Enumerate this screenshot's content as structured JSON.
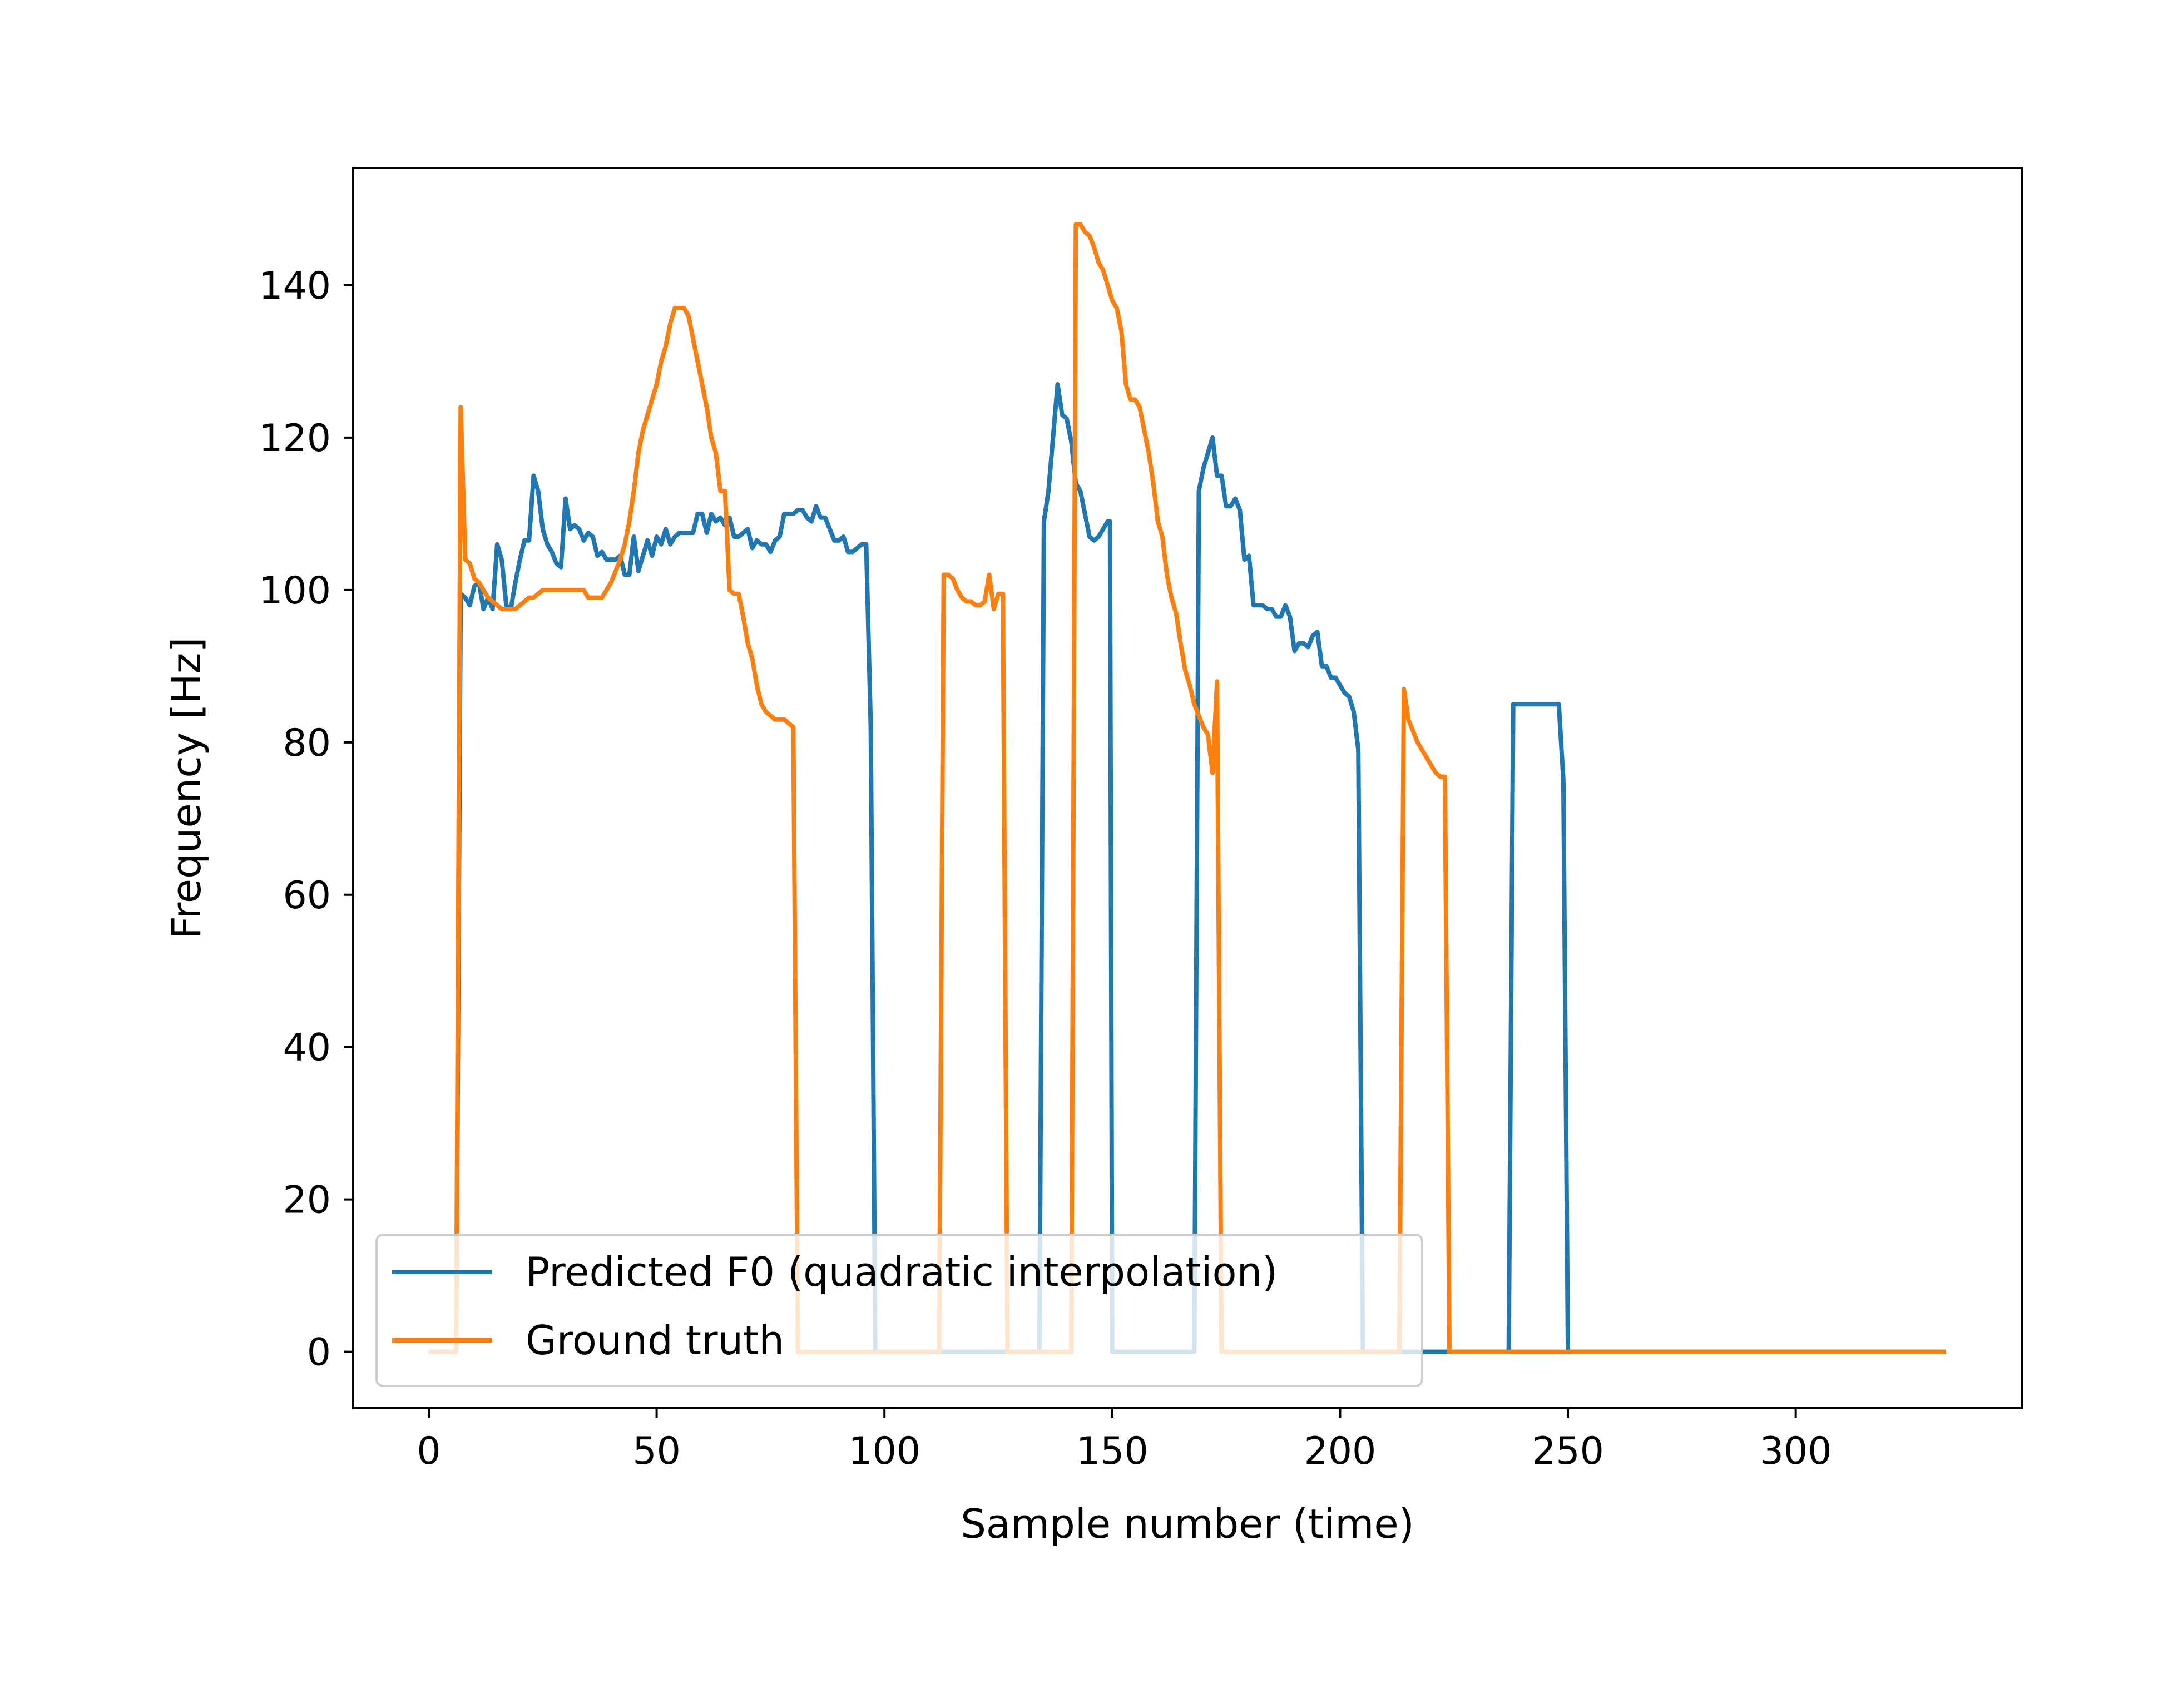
{
  "chart_data": {
    "type": "line",
    "title": "",
    "xlabel": "Sample number (time)",
    "ylabel": "Frequency [Hz]",
    "xlim": [
      -16.6,
      349.6
    ],
    "ylim": [
      -7.4,
      155.4
    ],
    "xticks": [
      0,
      50,
      100,
      150,
      200,
      250,
      300
    ],
    "yticks": [
      0,
      20,
      40,
      60,
      80,
      100,
      120,
      140
    ],
    "grid": false,
    "legend": {
      "placement": "lower-left"
    },
    "series": [
      {
        "name": "Predicted F0 (quadratic interpolation)",
        "color": "#1f77b4",
        "points": [
          [
            0,
            0
          ],
          [
            6,
            0
          ],
          [
            7,
            99.5
          ],
          [
            8,
            99
          ],
          [
            9,
            98
          ],
          [
            10,
            100.5
          ],
          [
            11,
            101
          ],
          [
            12,
            97.5
          ],
          [
            13,
            99
          ],
          [
            14,
            97.5
          ],
          [
            15,
            106
          ],
          [
            16,
            104
          ],
          [
            17,
            98
          ],
          [
            18,
            97.5
          ],
          [
            19,
            101
          ],
          [
            20,
            104
          ],
          [
            21,
            106.5
          ],
          [
            22,
            106.5
          ],
          [
            23,
            115
          ],
          [
            24,
            113
          ],
          [
            25,
            108
          ],
          [
            26,
            106
          ],
          [
            27,
            105
          ],
          [
            28,
            103.5
          ],
          [
            29,
            103
          ],
          [
            30,
            112
          ],
          [
            31,
            108
          ],
          [
            32,
            108.5
          ],
          [
            33,
            108
          ],
          [
            34,
            106.5
          ],
          [
            35,
            107.5
          ],
          [
            36,
            107
          ],
          [
            37,
            104.5
          ],
          [
            38,
            105
          ],
          [
            39,
            104
          ],
          [
            40,
            104
          ],
          [
            41,
            104
          ],
          [
            42,
            104.5
          ],
          [
            43,
            102
          ],
          [
            44,
            102
          ],
          [
            45,
            107
          ],
          [
            46,
            102.5
          ],
          [
            47,
            104.5
          ],
          [
            48,
            106.5
          ],
          [
            49,
            104.5
          ],
          [
            50,
            107
          ],
          [
            51,
            106
          ],
          [
            52,
            108
          ],
          [
            53,
            106
          ],
          [
            54,
            107
          ],
          [
            55,
            107.5
          ],
          [
            56,
            107.5
          ],
          [
            57,
            107.5
          ],
          [
            58,
            107.5
          ],
          [
            59,
            110
          ],
          [
            60,
            110
          ],
          [
            61,
            107.5
          ],
          [
            62,
            110
          ],
          [
            63,
            109
          ],
          [
            64,
            109.5
          ],
          [
            65,
            108.5
          ],
          [
            66,
            109.5
          ],
          [
            67,
            107
          ],
          [
            68,
            107
          ],
          [
            69,
            107.5
          ],
          [
            70,
            108
          ],
          [
            71,
            105.5
          ],
          [
            72,
            106.5
          ],
          [
            73,
            106
          ],
          [
            74,
            106
          ],
          [
            75,
            105
          ],
          [
            76,
            106.5
          ],
          [
            77,
            107
          ],
          [
            78,
            110
          ],
          [
            79,
            110
          ],
          [
            80,
            110
          ],
          [
            81,
            110.5
          ],
          [
            82,
            110.5
          ],
          [
            83,
            109.5
          ],
          [
            84,
            109
          ],
          [
            85,
            111
          ],
          [
            86,
            109.5
          ],
          [
            87,
            109.5
          ],
          [
            88,
            108
          ],
          [
            89,
            106.5
          ],
          [
            90,
            106.5
          ],
          [
            91,
            107
          ],
          [
            92,
            105
          ],
          [
            93,
            105
          ],
          [
            94,
            105.5
          ],
          [
            95,
            106
          ],
          [
            96,
            106
          ],
          [
            97,
            82
          ],
          [
            98,
            0
          ],
          [
            134,
            0
          ],
          [
            135,
            109
          ],
          [
            136,
            113
          ],
          [
            137,
            120
          ],
          [
            138,
            127
          ],
          [
            139,
            123
          ],
          [
            140,
            122.5
          ],
          [
            141,
            119.5
          ],
          [
            142,
            114
          ],
          [
            143,
            113
          ],
          [
            144,
            110
          ],
          [
            145,
            107
          ],
          [
            146,
            106.5
          ],
          [
            147,
            107
          ],
          [
            148,
            108
          ],
          [
            149,
            109
          ],
          [
            149.5,
            109
          ],
          [
            150,
            0
          ],
          [
            168,
            0
          ],
          [
            169,
            113
          ],
          [
            170,
            116
          ],
          [
            171,
            118
          ],
          [
            172,
            120
          ],
          [
            173,
            115
          ],
          [
            174,
            115
          ],
          [
            175,
            111
          ],
          [
            176,
            111
          ],
          [
            177,
            112
          ],
          [
            178,
            110.5
          ],
          [
            179,
            104
          ],
          [
            180,
            104.5
          ],
          [
            181,
            98
          ],
          [
            182,
            98
          ],
          [
            183,
            98
          ],
          [
            184,
            97.5
          ],
          [
            185,
            97.5
          ],
          [
            186,
            96.5
          ],
          [
            187,
            96.5
          ],
          [
            188,
            98
          ],
          [
            189,
            96.5
          ],
          [
            190,
            92
          ],
          [
            191,
            93
          ],
          [
            192,
            93
          ],
          [
            193,
            92.5
          ],
          [
            194,
            94
          ],
          [
            195,
            94.5
          ],
          [
            196,
            90
          ],
          [
            197,
            90
          ],
          [
            198,
            88.5
          ],
          [
            199,
            88.5
          ],
          [
            200,
            87.5
          ],
          [
            201,
            86.5
          ],
          [
            202,
            86
          ],
          [
            203,
            84
          ],
          [
            204,
            79
          ],
          [
            205,
            0
          ],
          [
            237,
            0
          ],
          [
            238,
            85
          ],
          [
            239,
            85
          ],
          [
            240,
            85
          ],
          [
            241,
            85
          ],
          [
            242,
            85
          ],
          [
            243,
            85
          ],
          [
            244,
            85
          ],
          [
            245,
            85
          ],
          [
            246,
            85
          ],
          [
            247,
            85
          ],
          [
            248,
            85
          ],
          [
            249,
            75
          ],
          [
            250,
            0
          ],
          [
            333,
            0
          ]
        ]
      },
      {
        "name": "Ground truth",
        "color": "#ff7f0e",
        "points": [
          [
            0,
            0
          ],
          [
            6,
            0
          ],
          [
            7,
            124
          ],
          [
            8,
            104
          ],
          [
            9,
            103.5
          ],
          [
            10,
            101.5
          ],
          [
            11,
            101
          ],
          [
            12,
            100
          ],
          [
            13,
            99
          ],
          [
            14,
            98.5
          ],
          [
            15,
            98
          ],
          [
            16,
            97.5
          ],
          [
            17,
            97.5
          ],
          [
            18,
            97.5
          ],
          [
            19,
            97.5
          ],
          [
            20,
            98
          ],
          [
            21,
            98.5
          ],
          [
            22,
            99
          ],
          [
            23,
            99
          ],
          [
            24,
            99.5
          ],
          [
            25,
            100
          ],
          [
            26,
            100
          ],
          [
            27,
            100
          ],
          [
            28,
            100
          ],
          [
            29,
            100
          ],
          [
            30,
            100
          ],
          [
            31,
            100
          ],
          [
            32,
            100
          ],
          [
            33,
            100
          ],
          [
            34,
            100
          ],
          [
            35,
            99
          ],
          [
            36,
            99
          ],
          [
            37,
            99
          ],
          [
            38,
            99
          ],
          [
            39,
            100
          ],
          [
            40,
            101
          ],
          [
            41,
            102.5
          ],
          [
            42,
            104
          ],
          [
            43,
            106
          ],
          [
            44,
            109
          ],
          [
            45,
            113
          ],
          [
            46,
            118
          ],
          [
            47,
            121
          ],
          [
            48,
            123
          ],
          [
            49,
            125
          ],
          [
            50,
            127
          ],
          [
            51,
            130
          ],
          [
            52,
            132
          ],
          [
            53,
            135
          ],
          [
            54,
            137
          ],
          [
            55,
            137
          ],
          [
            56,
            137
          ],
          [
            57,
            136
          ],
          [
            58,
            133
          ],
          [
            59,
            130
          ],
          [
            60,
            127
          ],
          [
            61,
            124
          ],
          [
            62,
            120
          ],
          [
            63,
            118
          ],
          [
            64,
            113
          ],
          [
            65,
            113
          ],
          [
            66,
            100
          ],
          [
            67,
            99.5
          ],
          [
            68,
            99.5
          ],
          [
            69,
            96.5
          ],
          [
            70,
            93
          ],
          [
            71,
            91
          ],
          [
            72,
            87.5
          ],
          [
            73,
            85
          ],
          [
            74,
            84
          ],
          [
            75,
            83.5
          ],
          [
            76,
            83
          ],
          [
            77,
            83
          ],
          [
            78,
            83
          ],
          [
            79,
            82.5
          ],
          [
            80,
            82
          ],
          [
            81,
            0
          ],
          [
            112,
            0
          ],
          [
            113,
            102
          ],
          [
            114,
            102
          ],
          [
            115,
            101.5
          ],
          [
            116,
            100
          ],
          [
            117,
            99
          ],
          [
            118,
            98.5
          ],
          [
            119,
            98.5
          ],
          [
            120,
            98
          ],
          [
            121,
            98
          ],
          [
            122,
            98.5
          ],
          [
            123,
            102
          ],
          [
            124,
            97.5
          ],
          [
            125,
            99.5
          ],
          [
            126,
            99.5
          ],
          [
            127,
            0
          ],
          [
            141,
            0
          ],
          [
            142,
            148
          ],
          [
            143,
            148
          ],
          [
            144,
            147
          ],
          [
            145,
            146.5
          ],
          [
            146,
            145
          ],
          [
            147,
            143
          ],
          [
            148,
            142
          ],
          [
            149,
            140
          ],
          [
            150,
            138
          ],
          [
            151,
            137
          ],
          [
            152,
            134
          ],
          [
            153,
            127
          ],
          [
            154,
            125
          ],
          [
            155,
            125
          ],
          [
            156,
            124
          ],
          [
            157,
            121
          ],
          [
            158,
            118
          ],
          [
            159,
            114
          ],
          [
            160,
            109
          ],
          [
            161,
            107
          ],
          [
            162,
            102
          ],
          [
            163,
            99
          ],
          [
            164,
            97
          ],
          [
            165,
            93
          ],
          [
            166,
            89.5
          ],
          [
            167,
            87.5
          ],
          [
            168,
            85
          ],
          [
            169,
            83.5
          ],
          [
            170,
            82
          ],
          [
            171,
            81
          ],
          [
            172,
            76
          ],
          [
            173,
            88
          ],
          [
            174,
            0
          ],
          [
            213,
            0
          ],
          [
            214,
            87
          ],
          [
            215,
            83
          ],
          [
            216,
            81.5
          ],
          [
            217,
            80
          ],
          [
            218,
            79
          ],
          [
            219,
            78
          ],
          [
            220,
            77
          ],
          [
            221,
            76
          ],
          [
            222,
            75.5
          ],
          [
            223,
            75.5
          ],
          [
            224,
            0
          ],
          [
            333,
            0
          ]
        ]
      }
    ]
  }
}
